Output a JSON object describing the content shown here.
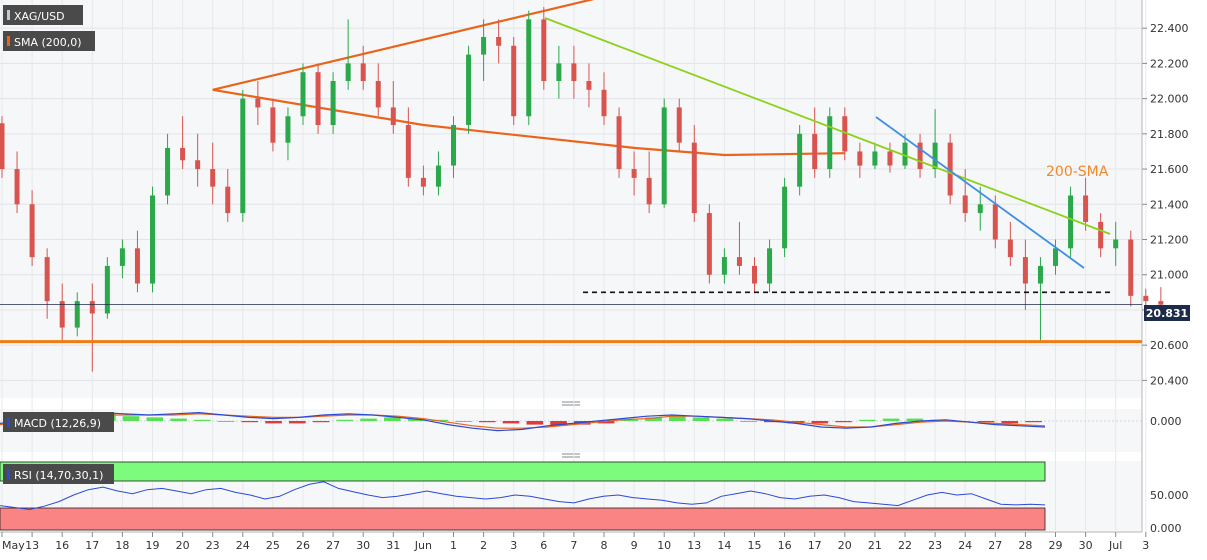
{
  "chart_data": {
    "type": "candlestick",
    "instrument": "XAG/USD",
    "indicators": {
      "sma_label": "SMA (200,0)",
      "sma_annotation": "200-SMA",
      "macd_label": "MACD (12,26,9)",
      "rsi_label": "RSI (14,70,30,1)"
    },
    "price_axis": {
      "min": 20.3,
      "max": 22.56,
      "ticks": [
        "22.400",
        "22.200",
        "22.000",
        "21.800",
        "21.600",
        "21.400",
        "21.200",
        "21.000",
        "20.800",
        "20.600",
        "20.400"
      ],
      "current_price": "20.831",
      "current_value": 20.831
    },
    "macd_axis": {
      "ticks": [
        "0.000"
      ]
    },
    "rsi_axis": {
      "ticks": [
        "50.000",
        "0.000"
      ],
      "overbought": 70,
      "oversold": 30
    },
    "x_axis": {
      "labels": [
        "May",
        "13",
        "16",
        "17",
        "18",
        "19",
        "20",
        "23",
        "24",
        "25",
        "26",
        "27",
        "30",
        "31",
        "Jun",
        "1",
        "2",
        "3",
        "6",
        "7",
        "8",
        "9",
        "10",
        "13",
        "14",
        "15",
        "16",
        "17",
        "20",
        "21",
        "22",
        "23",
        "24",
        "27",
        "28",
        "29",
        "30",
        "Jul",
        "3"
      ]
    },
    "levels": {
      "support": 20.62,
      "dashed_resistance": 20.9,
      "current": 20.831
    },
    "trendlines": {
      "green": {
        "from": [
          "Jun 6",
          22.52
        ],
        "to": [
          "Jul 1",
          21.28
        ]
      },
      "blue": {
        "from": [
          "Jun 21",
          21.94
        ],
        "to": [
          "Jun 30",
          21.07
        ]
      }
    },
    "sma200": [
      [
        21.0,
        22.62
      ],
      [
        7.0,
        22.05
      ],
      [
        14.0,
        21.85
      ],
      [
        21.0,
        21.72
      ],
      [
        24.0,
        21.68
      ],
      [
        28.0,
        21.69
      ]
    ],
    "candles": [
      [
        0,
        21.86,
        21.9,
        21.55,
        21.6
      ],
      [
        0.5,
        21.6,
        21.7,
        21.35,
        21.4
      ],
      [
        1,
        21.4,
        21.48,
        21.05,
        21.1
      ],
      [
        1.5,
        21.1,
        21.15,
        20.75,
        20.85
      ],
      [
        2,
        20.85,
        20.95,
        20.62,
        20.7
      ],
      [
        2.5,
        20.7,
        20.9,
        20.65,
        20.85
      ],
      [
        3,
        20.85,
        20.95,
        20.45,
        20.78
      ],
      [
        3.5,
        20.78,
        21.1,
        20.75,
        21.05
      ],
      [
        4,
        21.05,
        21.2,
        20.98,
        21.15
      ],
      [
        4.5,
        21.15,
        21.25,
        20.9,
        20.95
      ],
      [
        5,
        20.95,
        21.5,
        20.9,
        21.45
      ],
      [
        5.5,
        21.45,
        21.8,
        21.4,
        21.72
      ],
      [
        6,
        21.72,
        21.9,
        21.6,
        21.65
      ],
      [
        6.5,
        21.65,
        21.8,
        21.5,
        21.6
      ],
      [
        7,
        21.6,
        21.75,
        21.4,
        21.5
      ],
      [
        7.5,
        21.5,
        21.6,
        21.3,
        21.35
      ],
      [
        8,
        21.35,
        22.05,
        21.3,
        22.0
      ],
      [
        8.5,
        22.0,
        22.1,
        21.85,
        21.95
      ],
      [
        9,
        21.95,
        22.0,
        21.7,
        21.75
      ],
      [
        9.5,
        21.75,
        21.95,
        21.65,
        21.9
      ],
      [
        10,
        21.9,
        22.2,
        21.85,
        22.15
      ],
      [
        10.5,
        22.15,
        22.2,
        21.8,
        21.85
      ],
      [
        11,
        21.85,
        22.15,
        21.8,
        22.1
      ],
      [
        11.5,
        22.1,
        22.45,
        22.05,
        22.2
      ],
      [
        12,
        22.2,
        22.3,
        22.05,
        22.1
      ],
      [
        12.5,
        22.1,
        22.2,
        21.9,
        21.95
      ],
      [
        13,
        21.95,
        22.1,
        21.8,
        21.85
      ],
      [
        13.5,
        21.85,
        21.95,
        21.5,
        21.55
      ],
      [
        14,
        21.55,
        21.62,
        21.45,
        21.5
      ],
      [
        14.5,
        21.5,
        21.7,
        21.45,
        21.62
      ],
      [
        15,
        21.62,
        21.9,
        21.55,
        21.85
      ],
      [
        15.5,
        21.85,
        22.3,
        21.8,
        22.25
      ],
      [
        16,
        22.25,
        22.45,
        22.1,
        22.35
      ],
      [
        16.5,
        22.35,
        22.45,
        22.2,
        22.3
      ],
      [
        17,
        22.3,
        22.35,
        21.85,
        21.9
      ],
      [
        17.5,
        21.9,
        22.5,
        21.85,
        22.45
      ],
      [
        18,
        22.45,
        22.52,
        22.05,
        22.1
      ],
      [
        18.5,
        22.1,
        22.3,
        22.0,
        22.2
      ],
      [
        19,
        22.2,
        22.3,
        22.0,
        22.1
      ],
      [
        19.5,
        22.1,
        22.2,
        21.95,
        22.05
      ],
      [
        20,
        22.05,
        22.15,
        21.85,
        21.9
      ],
      [
        20.5,
        21.9,
        21.95,
        21.55,
        21.6
      ],
      [
        21,
        21.6,
        21.7,
        21.45,
        21.55
      ],
      [
        21.5,
        21.55,
        21.7,
        21.35,
        21.4
      ],
      [
        22,
        21.4,
        22.0,
        21.38,
        21.95
      ],
      [
        22.5,
        21.95,
        22.0,
        21.7,
        21.75
      ],
      [
        23,
        21.75,
        21.85,
        21.3,
        21.35
      ],
      [
        23.5,
        21.35,
        21.4,
        20.95,
        21.0
      ],
      [
        24,
        21.0,
        21.15,
        20.95,
        21.1
      ],
      [
        24.5,
        21.1,
        21.3,
        21.0,
        21.05
      ],
      [
        25,
        21.05,
        21.1,
        20.9,
        20.95
      ],
      [
        25.5,
        20.95,
        21.2,
        20.9,
        21.15
      ],
      [
        26,
        21.15,
        21.55,
        21.1,
        21.5
      ],
      [
        26.5,
        21.5,
        21.85,
        21.45,
        21.8
      ],
      [
        27,
        21.8,
        21.95,
        21.55,
        21.6
      ],
      [
        27.5,
        21.6,
        21.95,
        21.55,
        21.9
      ],
      [
        28,
        21.9,
        21.95,
        21.65,
        21.7
      ],
      [
        28.5,
        21.7,
        21.75,
        21.55,
        21.62
      ],
      [
        29,
        21.62,
        21.75,
        21.6,
        21.7
      ],
      [
        29.5,
        21.7,
        21.75,
        21.58,
        21.62
      ],
      [
        30,
        21.62,
        21.8,
        21.6,
        21.75
      ],
      [
        30.5,
        21.75,
        21.8,
        21.55,
        21.6
      ],
      [
        31,
        21.6,
        21.94,
        21.55,
        21.75
      ],
      [
        31.5,
        21.75,
        21.8,
        21.4,
        21.45
      ],
      [
        32,
        21.45,
        21.6,
        21.3,
        21.35
      ],
      [
        32.5,
        21.35,
        21.5,
        21.25,
        21.4
      ],
      [
        33,
        21.4,
        21.45,
        21.15,
        21.2
      ],
      [
        33.5,
        21.2,
        21.3,
        21.05,
        21.1
      ],
      [
        34,
        21.1,
        21.2,
        20.8,
        20.95
      ],
      [
        34.5,
        20.95,
        21.1,
        20.62,
        21.05
      ],
      [
        35,
        21.05,
        21.2,
        21.0,
        21.15
      ],
      [
        35.5,
        21.15,
        21.5,
        21.1,
        21.45
      ],
      [
        36,
        21.45,
        21.55,
        21.25,
        21.3
      ],
      [
        36.5,
        21.3,
        21.35,
        21.1,
        21.15
      ],
      [
        37,
        21.15,
        21.3,
        21.05,
        21.2
      ],
      [
        37.5,
        21.2,
        21.25,
        20.82,
        20.88
      ],
      [
        38,
        20.88,
        20.92,
        20.8,
        20.85
      ],
      [
        38.5,
        20.85,
        20.93,
        20.8,
        20.83
      ]
    ],
    "macd": {
      "hist": [
        0,
        0.02,
        0.04,
        0.05,
        0.06,
        0.04,
        0.03,
        0.02,
        0.01,
        0.0,
        -0.01,
        -0.02,
        -0.02,
        -0.01,
        0.01,
        0.02,
        0.03,
        0.02,
        0.01,
        0.0,
        -0.01,
        -0.02,
        -0.03,
        -0.04,
        -0.03,
        -0.02,
        0.01,
        0.03,
        0.04,
        0.03,
        0.02,
        0.0,
        -0.01,
        -0.02,
        -0.02,
        -0.01,
        0.01,
        0.02,
        0.02,
        0.01,
        0.0,
        -0.01,
        -0.02,
        -0.01
      ],
      "macd_line": [
        -0.02,
        0.01,
        0.04,
        0.06,
        0.07,
        0.06,
        0.05,
        0.06,
        0.07,
        0.05,
        0.03,
        0.02,
        0.03,
        0.05,
        0.06,
        0.05,
        0.03,
        0.01,
        -0.03,
        -0.06,
        -0.08,
        -0.07,
        -0.04,
        -0.02,
        0.0,
        0.02,
        0.04,
        0.05,
        0.04,
        0.03,
        0.02,
        0.0,
        -0.02,
        -0.05,
        -0.06,
        -0.05,
        -0.02,
        0.0,
        0.01,
        -0.01,
        -0.03,
        -0.04,
        -0.05
      ],
      "signal_line": [
        -0.03,
        -0.01,
        0.01,
        0.03,
        0.05,
        0.05,
        0.05,
        0.05,
        0.06,
        0.05,
        0.04,
        0.03,
        0.03,
        0.04,
        0.05,
        0.05,
        0.04,
        0.02,
        -0.01,
        -0.04,
        -0.06,
        -0.06,
        -0.05,
        -0.03,
        -0.01,
        0.01,
        0.02,
        0.04,
        0.04,
        0.03,
        0.02,
        0.01,
        -0.01,
        -0.03,
        -0.05,
        -0.05,
        -0.03,
        -0.01,
        0.0,
        -0.01,
        -0.02,
        -0.03,
        -0.04
      ]
    },
    "rsi": [
      34,
      31,
      28,
      33,
      40,
      50,
      58,
      62,
      56,
      52,
      58,
      60,
      56,
      52,
      58,
      60,
      54,
      50,
      44,
      48,
      58,
      66,
      70,
      60,
      55,
      50,
      46,
      48,
      52,
      56,
      52,
      48,
      46,
      44,
      46,
      50,
      48,
      44,
      40,
      38,
      44,
      48,
      50,
      46,
      44,
      42,
      38,
      36,
      38,
      48,
      52,
      56,
      52,
      46,
      44,
      48,
      50,
      46,
      40,
      38,
      36,
      34,
      42,
      50,
      54,
      50,
      52,
      44,
      36,
      35,
      36,
      35
    ]
  }
}
